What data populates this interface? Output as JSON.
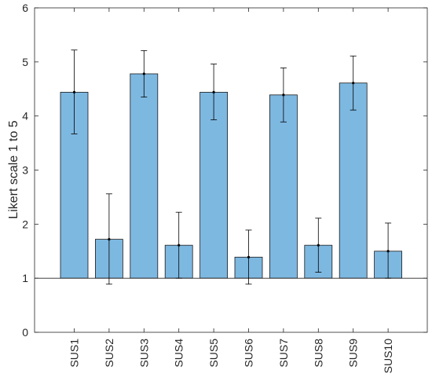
{
  "chart_data": {
    "type": "bar",
    "title": "",
    "xlabel": "",
    "ylabel": "Likert scale 1 to 5",
    "categories": [
      "SUS1",
      "SUS2",
      "SUS3",
      "SUS4",
      "SUS5",
      "SUS6",
      "SUS7",
      "SUS8",
      "SUS9",
      "SUS10"
    ],
    "values": [
      4.44,
      1.72,
      4.78,
      1.61,
      4.44,
      1.39,
      4.39,
      1.61,
      4.61,
      1.5
    ],
    "error_low": [
      3.67,
      0.89,
      4.35,
      1.0,
      3.93,
      0.89,
      3.89,
      1.11,
      4.11,
      1.0
    ],
    "error_high": [
      5.22,
      2.56,
      5.21,
      2.22,
      4.96,
      1.89,
      4.89,
      2.11,
      5.11,
      2.02
    ],
    "bar_base": 1,
    "ylim": [
      0,
      6
    ],
    "yticks": [
      0,
      1,
      2,
      3,
      4,
      5,
      6
    ],
    "grid": false,
    "colors": {
      "bar_fill": "#7db8e1",
      "bar_stroke": "#1a1a1a",
      "axis": "#262626",
      "error_bar": "#000000"
    }
  }
}
